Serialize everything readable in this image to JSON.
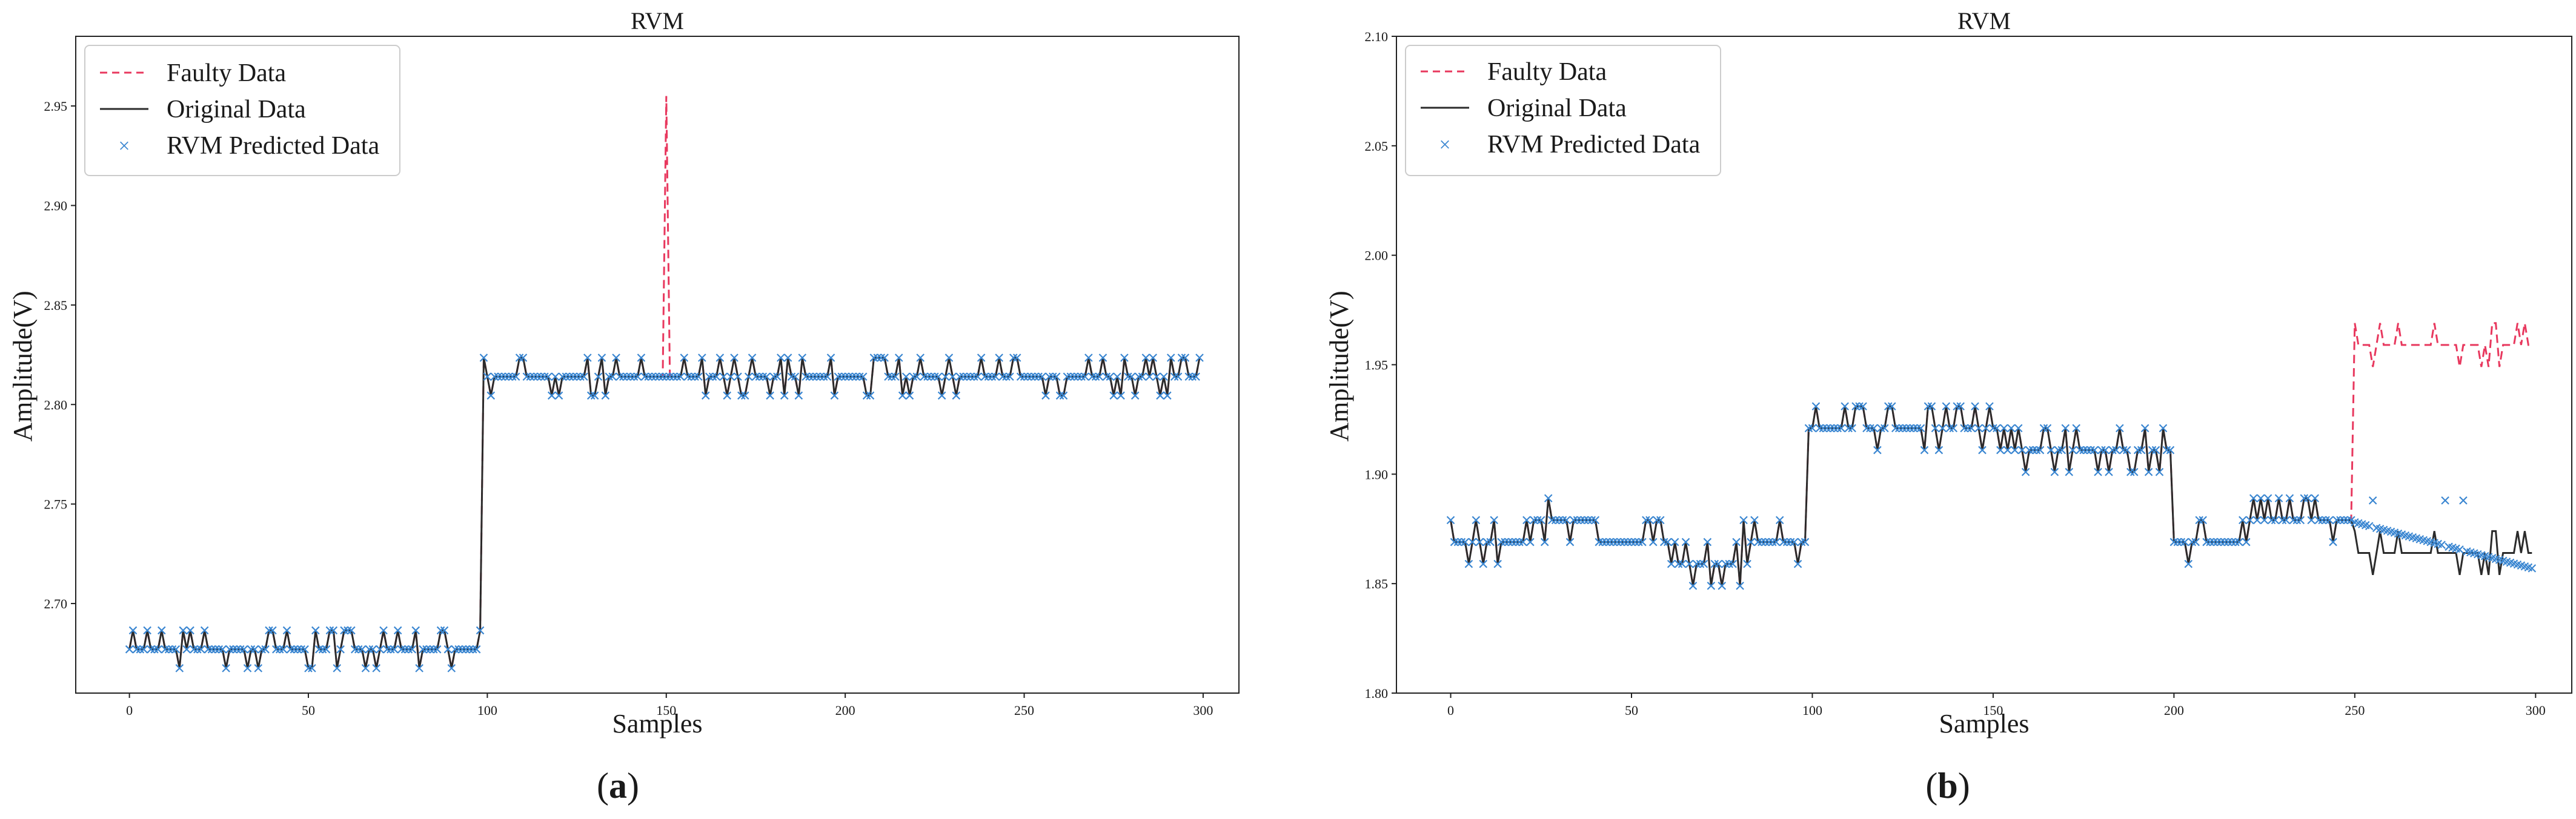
{
  "colors": {
    "faulty": "#e8385e",
    "original": "#2b2b2b",
    "predicted": "#3a86d1",
    "frame": "#222222"
  },
  "chart_data": [
    {
      "type": "line",
      "id": "a",
      "title": "RVM",
      "xlabel": "Samples",
      "ylabel": "Amplitude(V)",
      "xlim": [
        -15,
        310
      ],
      "ylim": [
        2.655,
        2.985
      ],
      "xticks": [
        0,
        50,
        100,
        150,
        200,
        250,
        300
      ],
      "yticks": [
        2.7,
        2.75,
        2.8,
        2.85,
        2.9,
        2.95
      ],
      "ytick_labels": [
        "2.70",
        "2.75",
        "2.80",
        "2.85",
        "2.90",
        "2.95"
      ],
      "legend": [
        "Faulty Data",
        "Original Data",
        "RVM Predicted Data"
      ],
      "legend_position": "top-left",
      "caption_letter": "a",
      "series": {
        "segments": [
          {
            "from": 0,
            "to": 98,
            "base": 2.677,
            "step": 0.0095,
            "seed": 3
          },
          {
            "from": 99,
            "to": 299,
            "base": 2.814,
            "step": 0.0095,
            "seed": 11
          }
        ],
        "fault": {
          "start": 149,
          "end": 151,
          "peak_index": 150,
          "peak_value": 2.955
        }
      }
    },
    {
      "type": "line",
      "id": "b",
      "title": "RVM",
      "xlabel": "Samples",
      "ylabel": "Amplitude(V)",
      "xlim": [
        -15,
        310
      ],
      "ylim": [
        1.8,
        2.1
      ],
      "xticks": [
        0,
        50,
        100,
        150,
        200,
        250,
        300
      ],
      "yticks": [
        1.8,
        1.85,
        1.9,
        1.95,
        2.0,
        2.05,
        2.1
      ],
      "ytick_labels": [
        "1.80",
        "1.85",
        "1.90",
        "1.95",
        "2.00",
        "2.05",
        "2.10"
      ],
      "legend": [
        "Faulty Data",
        "Original Data",
        "RVM Predicted Data"
      ],
      "legend_position": "top-left",
      "caption_letter": "b",
      "series": {
        "segments": [
          {
            "from": 0,
            "to": 20,
            "base": 1.869,
            "step": 0.01,
            "seed": 5
          },
          {
            "from": 21,
            "to": 40,
            "base": 1.879,
            "step": 0.01,
            "seed": 7
          },
          {
            "from": 41,
            "to": 60,
            "base": 1.869,
            "step": 0.01,
            "seed": 9
          },
          {
            "from": 61,
            "to": 80,
            "base": 1.859,
            "step": 0.01,
            "seed": 13
          },
          {
            "from": 81,
            "to": 98,
            "base": 1.869,
            "step": 0.01,
            "seed": 17
          },
          {
            "from": 99,
            "to": 120,
            "base": 1.921,
            "step": 0.01,
            "seed": 19
          },
          {
            "from": 121,
            "to": 150,
            "base": 1.921,
            "step": 0.01,
            "seed": 23
          },
          {
            "from": 151,
            "to": 199,
            "base": 1.911,
            "step": 0.01,
            "seed": 29
          },
          {
            "from": 200,
            "to": 220,
            "base": 1.869,
            "step": 0.01,
            "seed": 31
          },
          {
            "from": 221,
            "to": 249,
            "base": 1.879,
            "step": 0.01,
            "seed": 37
          },
          {
            "from": 250,
            "to": 299,
            "base": 1.864,
            "step": 0.01,
            "seed": 41
          }
        ],
        "fault": {
          "start": 250,
          "end": 299,
          "offset": 0.095
        },
        "predicted_drift": {
          "start": 250,
          "end": 299,
          "from": 1.878,
          "to": 1.857
        }
      }
    }
  ]
}
